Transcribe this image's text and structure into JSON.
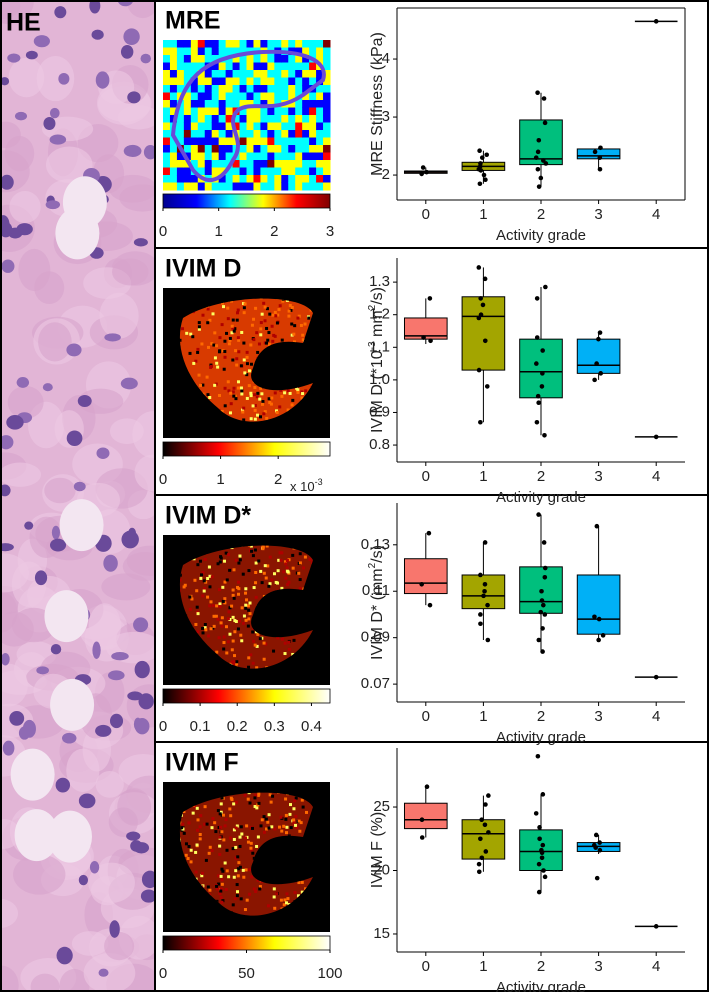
{
  "he_label": "HE",
  "chart_data": [
    {
      "type": "box",
      "title": "MRE",
      "ylabel": [
        "MRE Stiffness (kPa)"
      ],
      "xlabel": "Activity grade",
      "categories": [
        "0",
        "1",
        "2",
        "3",
        "4"
      ],
      "ylim": [
        1.57,
        4.88
      ],
      "yticks": [
        2,
        3,
        4
      ],
      "boxes": [
        {
          "color": "#f8766d",
          "min": 2.02,
          "q1": 2.03,
          "median": 2.05,
          "q3": 2.07,
          "max": 2.13,
          "points": [
            2.02,
            2.05,
            2.13
          ]
        },
        {
          "color": "#a3a500",
          "min": 1.85,
          "q1": 2.08,
          "median": 2.15,
          "q3": 2.22,
          "max": 2.42,
          "points": [
            2.42,
            2.35,
            2.3,
            2.2,
            2.15,
            2.1,
            2.08,
            2.0,
            1.92,
            1.85
          ]
        },
        {
          "color": "#00bf7d",
          "min": 1.8,
          "q1": 2.18,
          "median": 2.28,
          "q3": 2.95,
          "max": 3.42,
          "points": [
            3.42,
            3.32,
            2.9,
            2.6,
            2.4,
            2.3,
            2.25,
            2.2,
            2.1,
            1.95,
            1.8
          ]
        },
        {
          "color": "#00b0f6",
          "min": 2.1,
          "q1": 2.28,
          "median": 2.33,
          "q3": 2.45,
          "max": 2.47,
          "points": [
            2.47,
            2.4,
            2.3,
            2.1
          ]
        },
        {
          "min": 4.65,
          "q1": 4.65,
          "median": 4.65,
          "q3": 4.65,
          "max": 4.65,
          "points": [
            4.65
          ]
        }
      ],
      "colorbar": {
        "colors": [
          "#00008f",
          "#0000ff",
          "#00ffff",
          "#ffff00",
          "#ff0000",
          "#800000"
        ],
        "lim": [
          0,
          3
        ],
        "ticks": [
          0,
          1,
          2,
          3
        ]
      }
    },
    {
      "type": "box",
      "title": "IVIM D",
      "ylabel": [
        "IVIM D  (*10",
        "-3",
        " mm",
        "2",
        "/s)"
      ],
      "xlabel": "Activity grade",
      "categories": [
        "0",
        "1",
        "2",
        "3",
        "4"
      ],
      "ylim": [
        0.748,
        1.374
      ],
      "yticks": [
        0.8,
        0.9,
        {
          "value": 1,
          "label": "1.0"
        },
        1.1,
        1.2,
        1.3
      ],
      "boxes": [
        {
          "color": "#f8766d",
          "min": 1.11,
          "q1": 1.125,
          "median": 1.135,
          "q3": 1.19,
          "max": 1.25,
          "points": [
            1.25,
            1.13,
            1.12
          ]
        },
        {
          "color": "#a3a500",
          "min": 0.87,
          "q1": 1.03,
          "median": 1.195,
          "q3": 1.255,
          "max": 1.345,
          "points": [
            1.345,
            1.31,
            1.25,
            1.23,
            1.2,
            1.19,
            1.12,
            1.03,
            0.98,
            0.87
          ]
        },
        {
          "color": "#00bf7d",
          "min": 0.83,
          "q1": 0.945,
          "median": 1.025,
          "q3": 1.125,
          "max": 1.285,
          "points": [
            1.285,
            1.25,
            1.13,
            1.09,
            1.05,
            1.02,
            0.98,
            0.95,
            0.93,
            0.87,
            0.83
          ]
        },
        {
          "color": "#00b0f6",
          "min": 1.0,
          "q1": 1.02,
          "median": 1.045,
          "q3": 1.125,
          "max": 1.145,
          "points": [
            1.145,
            1.125,
            1.05,
            1.02,
            1.0
          ]
        },
        {
          "min": 0.825,
          "q1": 0.825,
          "median": 0.825,
          "q3": 0.825,
          "max": 0.825,
          "points": [
            0.825
          ]
        }
      ],
      "colorbar": {
        "colors": [
          "#000000",
          "#ff0000",
          "#ffff00",
          "#ffffff"
        ],
        "lim": [
          0,
          2.9
        ],
        "ticks": [
          0,
          1,
          2
        ],
        "unit": [
          "x 10",
          "-3"
        ]
      }
    },
    {
      "type": "box",
      "title": "IVIM D*",
      "ylabel": [
        "IVIM D*  (mm",
        "2",
        "/s)"
      ],
      "xlabel": "Activity grade",
      "categories": [
        "0",
        "1",
        "2",
        "3",
        "4"
      ],
      "ylim": [
        0.0623,
        0.148
      ],
      "yticks": [
        0.07,
        0.09,
        0.11,
        0.13
      ],
      "boxes": [
        {
          "color": "#f8766d",
          "min": 0.104,
          "q1": 0.109,
          "median": 0.1135,
          "q3": 0.124,
          "max": 0.135,
          "points": [
            0.135,
            0.113,
            0.104
          ]
        },
        {
          "color": "#a3a500",
          "min": 0.089,
          "q1": 0.1025,
          "median": 0.108,
          "q3": 0.117,
          "max": 0.131,
          "points": [
            0.131,
            0.117,
            0.113,
            0.11,
            0.108,
            0.104,
            0.1,
            0.096,
            0.089
          ]
        },
        {
          "color": "#00bf7d",
          "min": 0.084,
          "q1": 0.1005,
          "median": 0.1055,
          "q3": 0.1205,
          "max": 0.143,
          "points": [
            0.143,
            0.131,
            0.12,
            0.116,
            0.11,
            0.106,
            0.104,
            0.101,
            0.1,
            0.094,
            0.089,
            0.084
          ]
        },
        {
          "color": "#00b0f6",
          "min": 0.089,
          "q1": 0.0915,
          "median": 0.098,
          "q3": 0.117,
          "max": 0.138,
          "points": [
            0.138,
            0.099,
            0.098,
            0.091,
            0.089
          ]
        },
        {
          "min": 0.073,
          "q1": 0.073,
          "median": 0.073,
          "q3": 0.073,
          "max": 0.073,
          "points": [
            0.073
          ]
        }
      ],
      "colorbar": {
        "colors": [
          "#000000",
          "#ff0000",
          "#ffff00",
          "#ffffff"
        ],
        "lim": [
          0,
          0.45
        ],
        "ticks": [
          0,
          0.1,
          0.2,
          0.3,
          0.4
        ]
      }
    },
    {
      "type": "box",
      "title": "IVIM F",
      "ylabel": [
        "IVIM F (%)"
      ],
      "xlabel": "Activity grade",
      "categories": [
        "0",
        "1",
        "2",
        "3",
        "4"
      ],
      "ylim": [
        13.58,
        29.65
      ],
      "yticks": [
        15,
        20,
        25
      ],
      "boxes": [
        {
          "color": "#f8766d",
          "min": 22.6,
          "q1": 23.3,
          "median": 24,
          "q3": 25.3,
          "max": 26.6,
          "points": [
            26.6,
            24,
            22.6
          ]
        },
        {
          "color": "#a3a500",
          "min": 19.9,
          "q1": 20.9,
          "median": 22.9,
          "q3": 24.0,
          "max": 25.9,
          "points": [
            25.9,
            25.2,
            24,
            23.6,
            23,
            22.5,
            21.5,
            21,
            20.5,
            19.9
          ]
        },
        {
          "color": "#00bf7d",
          "min": 18.3,
          "q1": 20.0,
          "median": 21.5,
          "q3": 23.2,
          "max": 26,
          "points": [
            29,
            26,
            24.5,
            23.4,
            22.5,
            22,
            21.6,
            21.4,
            21,
            20.5,
            20,
            19.5,
            18.3
          ]
        },
        {
          "color": "#00b0f6",
          "min": 21.3,
          "q1": 21.5,
          "median": 21.9,
          "q3": 22.2,
          "max": 22.8,
          "points": [
            22.8,
            22.2,
            22,
            21.8,
            21.6,
            19.4
          ]
        },
        {
          "min": 15.6,
          "q1": 15.6,
          "median": 15.6,
          "q3": 15.6,
          "max": 15.6,
          "points": [
            15.6
          ]
        }
      ],
      "colorbar": {
        "colors": [
          "#000000",
          "#ff0000",
          "#ffff00",
          "#ffffff"
        ],
        "lim": [
          0,
          100
        ],
        "ticks": [
          0,
          50,
          100
        ]
      }
    }
  ]
}
